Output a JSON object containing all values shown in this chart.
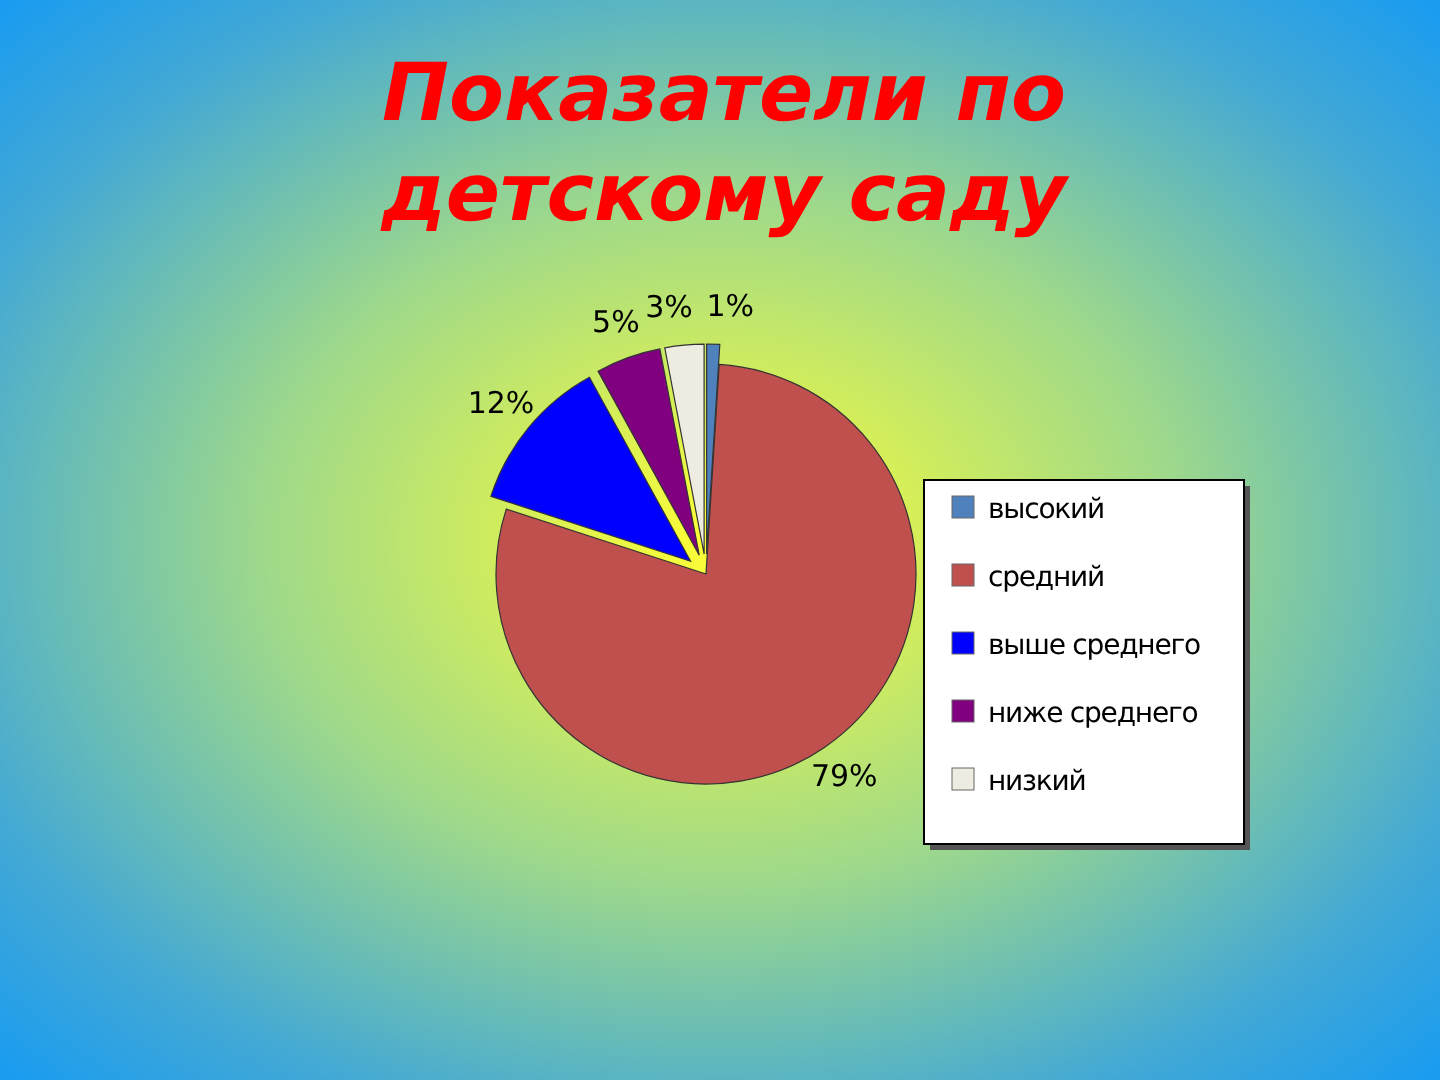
{
  "chart_data": {
    "type": "pie",
    "title": "Показатели по детскому саду",
    "categories": [
      "высокий",
      "средний",
      "выше среднего",
      "ниже среднего",
      "низкий"
    ],
    "values": [
      1,
      79,
      12,
      5,
      3
    ],
    "colors": [
      "#4f81bd",
      "#c0504d",
      "#0000ff",
      "#800080",
      "#eeece1"
    ],
    "value_labels": [
      "1%",
      "79%",
      "12%",
      "5%",
      "3%"
    ],
    "legend": "right"
  }
}
